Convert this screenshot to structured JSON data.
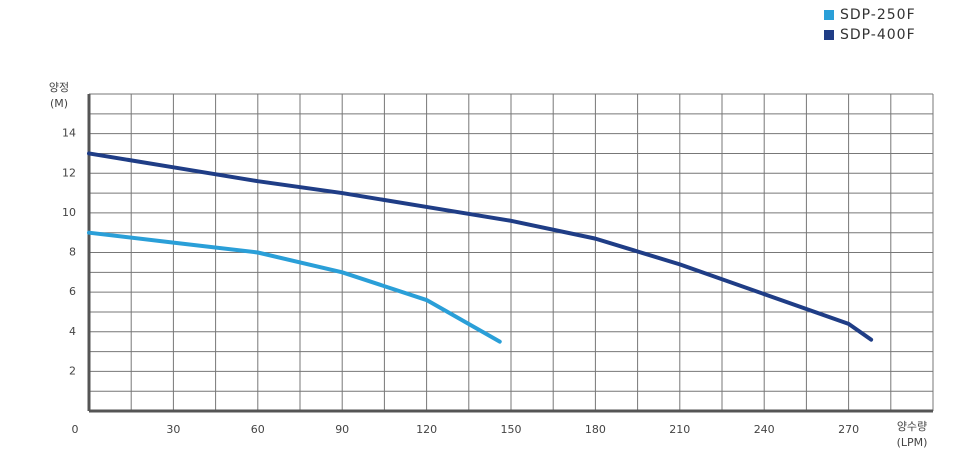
{
  "chart_data": {
    "type": "line",
    "ylabel": [
      "양정",
      "(M)"
    ],
    "xlabel": [
      "양수량",
      "(LPM)"
    ],
    "xlim": [
      0,
      300
    ],
    "xticks": [
      0,
      30,
      60,
      90,
      120,
      150,
      180,
      210,
      240,
      270
    ],
    "xgrid": [
      15,
      30,
      45,
      60,
      75,
      90,
      105,
      120,
      135,
      150,
      165,
      180,
      195,
      210,
      225,
      240,
      255,
      270,
      285,
      300
    ],
    "ylim": [
      0,
      16
    ],
    "yticks": [
      2,
      4,
      6,
      8,
      10,
      12,
      14
    ],
    "ygrid": [
      1,
      2,
      3,
      4,
      5,
      6,
      7,
      8,
      9,
      10,
      11,
      12,
      13,
      14,
      15,
      16
    ],
    "grid": true,
    "legend": "top-right",
    "series": [
      {
        "name": "SDP-250F",
        "color": "#2a9fd8",
        "x": [
          0,
          30,
          60,
          90,
          120,
          146
        ],
        "values": [
          9,
          8.5,
          8.0,
          7.0,
          5.6,
          3.5
        ]
      },
      {
        "name": "SDP-400F",
        "color": "#1f3d86",
        "x": [
          0,
          30,
          60,
          90,
          120,
          150,
          180,
          210,
          240,
          270,
          278
        ],
        "values": [
          13,
          12.3,
          11.6,
          11.0,
          10.3,
          9.6,
          8.7,
          7.4,
          5.9,
          4.4,
          3.6
        ]
      }
    ]
  }
}
